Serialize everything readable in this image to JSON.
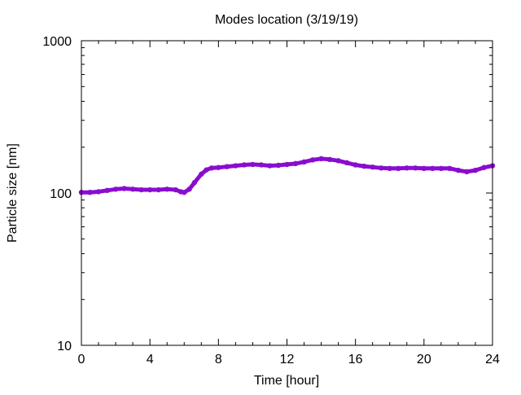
{
  "colors": {
    "series": "#8a0cd0",
    "axis": "#000000",
    "background": "#ffffff"
  },
  "chart_data": {
    "type": "line",
    "title": "Modes location (3/19/19)",
    "xlabel": "Time [hour]",
    "ylabel": "Particle size [nm]",
    "xlim": [
      0,
      24
    ],
    "ylim": [
      10,
      1000
    ],
    "yscale": "log",
    "grid": false,
    "legend": "none",
    "x_ticks": [
      0,
      4,
      8,
      12,
      16,
      20,
      24
    ],
    "x_tick_labels": [
      "0",
      "4",
      "8",
      "12",
      "16",
      "20",
      "24"
    ],
    "y_ticks": [
      10,
      100,
      1000
    ],
    "y_tick_labels": [
      "10",
      "100",
      "1000"
    ],
    "series": [
      {
        "x": [
          0,
          0.5,
          1,
          1.5,
          2,
          2.5,
          3,
          3.5,
          4,
          4.5,
          5,
          5.5,
          5.8,
          6,
          6.3,
          6.6,
          7,
          7.3,
          7.6,
          8,
          8.5,
          9,
          9.5,
          10,
          10.5,
          11,
          11.5,
          12,
          12.5,
          13,
          13.5,
          14,
          14.5,
          15,
          15.5,
          16,
          16.5,
          17,
          17.5,
          18,
          18.5,
          19,
          19.5,
          20,
          20.5,
          21,
          21.5,
          22,
          22.5,
          23,
          23.5,
          24
        ],
        "y": [
          101,
          101,
          102,
          104,
          106,
          107,
          106,
          105,
          105,
          105,
          106,
          105,
          102,
          101,
          106,
          117,
          133,
          142,
          146,
          147,
          149,
          151,
          153,
          154,
          153,
          151,
          152,
          154,
          156,
          160,
          165,
          168,
          166,
          163,
          158,
          153,
          150,
          148,
          146,
          145,
          145,
          146,
          146,
          145,
          145,
          145,
          145,
          141,
          138,
          141,
          147,
          151
        ]
      }
    ]
  }
}
